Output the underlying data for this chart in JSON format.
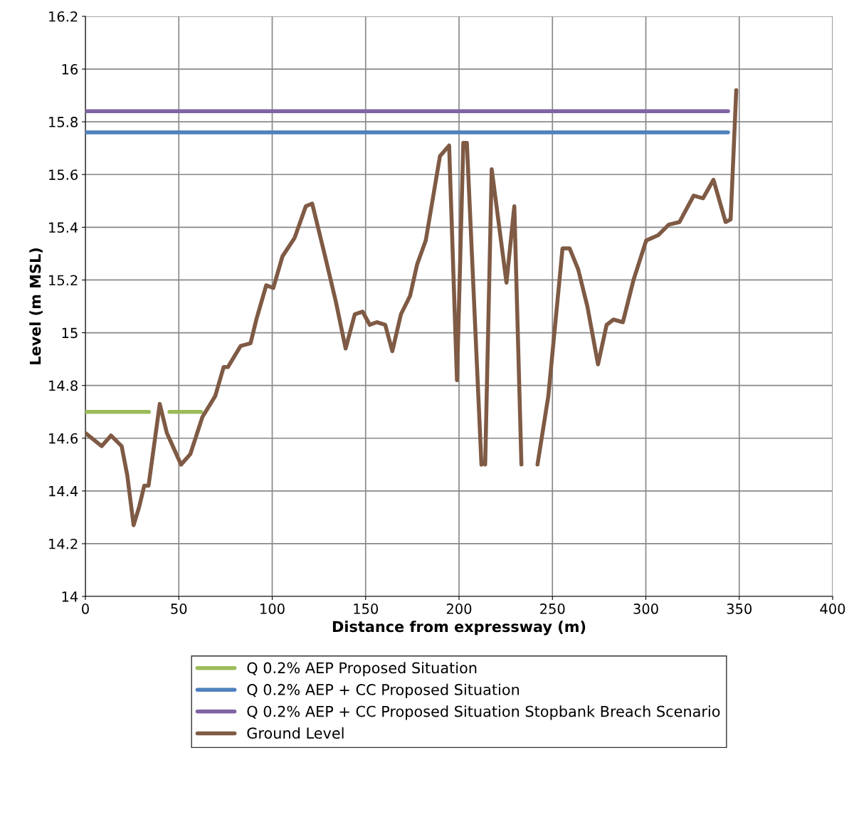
{
  "chart_data": {
    "type": "line",
    "xlabel": "Distance from expressway (m)",
    "ylabel": "Level (m MSL)",
    "xlim": [
      0,
      400
    ],
    "ylim": [
      14,
      16.2
    ],
    "xticks": [
      0,
      50,
      100,
      150,
      200,
      250,
      300,
      350,
      400
    ],
    "yticks": [
      14,
      14.2,
      14.4,
      14.6,
      14.8,
      15,
      15.2,
      15.4,
      15.6,
      15.8,
      16,
      16.2
    ],
    "grid": true,
    "legend": "bottom",
    "line_style": "solid",
    "marker": "none",
    "series": [
      {
        "name": "Q 0.2% AEP Proposed Situation",
        "color": "#9bbb59",
        "x": [
          0,
          34,
          40,
          45,
          62
        ],
        "values": [
          14.7,
          14.7,
          null,
          14.7,
          14.7
        ]
      },
      {
        "name": "Q 0.2% AEP + CC Proposed Situation",
        "color": "#4f81bd",
        "x": [
          0,
          344
        ],
        "values": [
          15.76,
          15.76
        ]
      },
      {
        "name": "Q 0.2% AEP + CC Proposed Situation Stopbank Breach Scenario",
        "color": "#8064a2",
        "x": [
          0,
          344
        ],
        "values": [
          15.84,
          15.84
        ]
      },
      {
        "name": "Ground Level",
        "color": "#7f5a44",
        "x": [
          0,
          8.7,
          13.7,
          19.4,
          22.4,
          25.8,
          28.8,
          31.5,
          33.8,
          39.8,
          43.6,
          51.2,
          56.2,
          62.6,
          69.5,
          74,
          76.3,
          83.1,
          88.4,
          91.5,
          96.8,
          100.6,
          105.5,
          112,
          118,
          121.4,
          128.3,
          134,
          139.3,
          144.2,
          148.4,
          152.2,
          156,
          160.5,
          164.3,
          168.9,
          173.8,
          177.6,
          182.2,
          189.8,
          194.7,
          198.9,
          202.3,
          204.2,
          212,
          213,
          214,
          217.5,
          225.4,
          229.6,
          233.4,
          238,
          242,
          247.8,
          255.4,
          259.2,
          263.8,
          268.7,
          274.4,
          279,
          282.7,
          287.7,
          293.4,
          300.2,
          306.6,
          312.3,
          318,
          325.6,
          330.6,
          336.2,
          342.7,
          345.4,
          348.4
        ],
        "values": [
          14.62,
          14.57,
          14.61,
          14.57,
          14.46,
          14.27,
          14.34,
          14.42,
          14.42,
          14.73,
          14.62,
          14.5,
          14.54,
          14.68,
          14.76,
          14.87,
          14.87,
          14.95,
          14.96,
          15.05,
          15.18,
          15.17,
          15.29,
          15.36,
          15.48,
          15.49,
          15.29,
          15.12,
          14.94,
          15.07,
          15.08,
          15.03,
          15.04,
          15.03,
          14.93,
          15.07,
          15.14,
          15.26,
          15.35,
          15.67,
          15.71,
          14.82,
          15.72,
          15.72,
          14.5,
          null,
          14.5,
          15.62,
          15.19,
          15.48,
          14.5,
          null,
          14.5,
          14.76,
          15.32,
          15.32,
          15.24,
          15.1,
          14.88,
          15.03,
          15.05,
          15.04,
          15.2,
          15.35,
          15.37,
          15.41,
          15.42,
          15.52,
          15.51,
          15.58,
          15.42,
          15.43,
          15.92
        ]
      }
    ]
  }
}
